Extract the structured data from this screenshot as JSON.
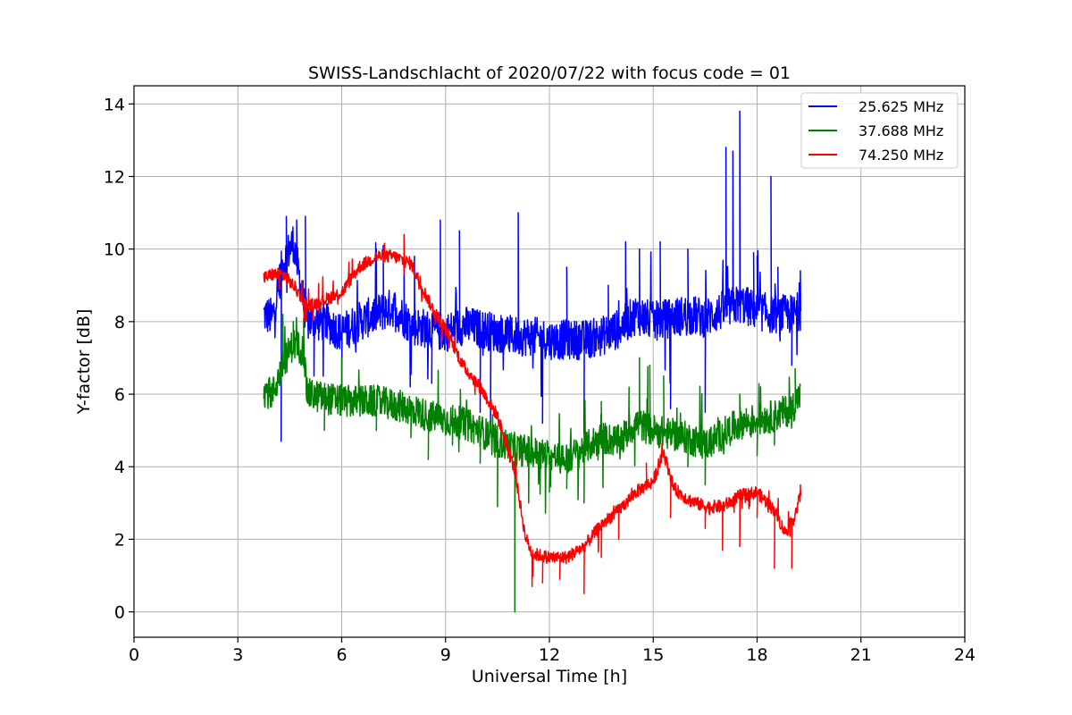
{
  "chart_data": {
    "type": "line",
    "title": "SWISS-Landschlacht of 2020/07/22 with focus code = 01",
    "xlabel": "Universal Time [h]",
    "ylabel": "Y-factor [dB]",
    "xlim": [
      0,
      24
    ],
    "ylim": [
      -0.7,
      14.5
    ],
    "xticks": [
      0,
      3,
      6,
      9,
      12,
      15,
      18,
      21,
      24
    ],
    "yticks": [
      0,
      2,
      4,
      6,
      8,
      10,
      12,
      14
    ],
    "grid": true,
    "legend_position": "top-right",
    "series": [
      {
        "name": "25.625 MHz",
        "color": "#0000ff",
        "points": [
          [
            3.75,
            8.2
          ],
          [
            4.0,
            8.1
          ],
          [
            4.3,
            9.6
          ],
          [
            4.6,
            10.2
          ],
          [
            5.0,
            8.0
          ],
          [
            5.5,
            8.0
          ],
          [
            6.0,
            7.7
          ],
          [
            6.5,
            8.0
          ],
          [
            7.0,
            8.2
          ],
          [
            7.5,
            8.4
          ],
          [
            8.0,
            7.9
          ],
          [
            8.5,
            7.8
          ],
          [
            9.0,
            7.7
          ],
          [
            9.5,
            7.9
          ],
          [
            10.0,
            7.8
          ],
          [
            10.5,
            7.7
          ],
          [
            11.0,
            7.6
          ],
          [
            11.5,
            7.6
          ],
          [
            12.0,
            7.5
          ],
          [
            12.5,
            7.5
          ],
          [
            13.0,
            7.5
          ],
          [
            13.5,
            7.6
          ],
          [
            14.0,
            7.8
          ],
          [
            14.5,
            8.2
          ],
          [
            15.0,
            8.0
          ],
          [
            15.5,
            8.1
          ],
          [
            16.0,
            8.2
          ],
          [
            16.5,
            8.1
          ],
          [
            17.0,
            8.3
          ],
          [
            17.5,
            8.5
          ],
          [
            18.0,
            8.3
          ],
          [
            18.5,
            8.2
          ],
          [
            19.0,
            8.2
          ],
          [
            19.25,
            8.3
          ]
        ],
        "spikes": [
          [
            4.25,
            4.7
          ],
          [
            4.4,
            10.9
          ],
          [
            4.7,
            10.8
          ],
          [
            4.95,
            10.9
          ],
          [
            5.2,
            6.5
          ],
          [
            6.0,
            6.1
          ],
          [
            7.0,
            10.0
          ],
          [
            7.2,
            10.1
          ],
          [
            7.8,
            10.3
          ],
          [
            8.1,
            9.8
          ],
          [
            8.6,
            6.3
          ],
          [
            8.85,
            10.8
          ],
          [
            9.4,
            10.5
          ],
          [
            10.0,
            5.5
          ],
          [
            10.3,
            5.0
          ],
          [
            11.1,
            11.0
          ],
          [
            11.8,
            5.2
          ],
          [
            12.5,
            9.5
          ],
          [
            13.0,
            4.9
          ],
          [
            13.7,
            9.0
          ],
          [
            14.2,
            10.2
          ],
          [
            14.6,
            10.0
          ],
          [
            15.2,
            10.2
          ],
          [
            15.5,
            5.6
          ],
          [
            16.0,
            10.0
          ],
          [
            16.5,
            5.5
          ],
          [
            17.1,
            12.8
          ],
          [
            17.3,
            12.7
          ],
          [
            17.5,
            13.8
          ],
          [
            17.9,
            9.9
          ],
          [
            18.0,
            9.8
          ],
          [
            18.4,
            12.0
          ],
          [
            18.6,
            9.5
          ],
          [
            19.0,
            6.8
          ],
          [
            19.25,
            9.4
          ]
        ]
      },
      {
        "name": "37.688 MHz",
        "color": "#008000",
        "points": [
          [
            3.75,
            6.1
          ],
          [
            4.0,
            6.0
          ],
          [
            4.3,
            6.8
          ],
          [
            4.6,
            7.4
          ],
          [
            4.9,
            7.2
          ],
          [
            5.0,
            6.0
          ],
          [
            5.5,
            5.9
          ],
          [
            6.0,
            5.8
          ],
          [
            6.5,
            5.8
          ],
          [
            7.0,
            5.8
          ],
          [
            7.5,
            5.7
          ],
          [
            8.0,
            5.6
          ],
          [
            8.5,
            5.4
          ],
          [
            9.0,
            5.3
          ],
          [
            9.5,
            5.2
          ],
          [
            10.0,
            5.0
          ],
          [
            10.5,
            4.7
          ],
          [
            11.0,
            4.5
          ],
          [
            11.5,
            4.4
          ],
          [
            12.0,
            4.3
          ],
          [
            12.5,
            4.2
          ],
          [
            13.0,
            4.5
          ],
          [
            13.5,
            4.8
          ],
          [
            14.0,
            4.7
          ],
          [
            14.5,
            5.2
          ],
          [
            15.0,
            5.0
          ],
          [
            15.5,
            4.9
          ],
          [
            16.0,
            4.8
          ],
          [
            16.5,
            4.6
          ],
          [
            17.0,
            4.9
          ],
          [
            17.5,
            5.2
          ],
          [
            18.0,
            5.3
          ],
          [
            18.5,
            5.4
          ],
          [
            19.0,
            5.6
          ],
          [
            19.25,
            6.0
          ]
        ],
        "spikes": [
          [
            4.3,
            8.2
          ],
          [
            4.6,
            8.0
          ],
          [
            4.9,
            8.1
          ],
          [
            5.5,
            5.0
          ],
          [
            6.0,
            7.0
          ],
          [
            6.5,
            6.2
          ],
          [
            7.0,
            5.0
          ],
          [
            8.0,
            4.8
          ],
          [
            8.5,
            4.2
          ],
          [
            9.2,
            4.6
          ],
          [
            10.0,
            4.1
          ],
          [
            10.5,
            2.9
          ],
          [
            11.0,
            0.0
          ],
          [
            11.4,
            3.0
          ],
          [
            12.0,
            3.3
          ],
          [
            12.5,
            3.4
          ],
          [
            13.0,
            3.0
          ],
          [
            13.5,
            5.8
          ],
          [
            14.3,
            5.8
          ],
          [
            14.6,
            7.0
          ],
          [
            14.9,
            6.8
          ],
          [
            15.3,
            6.5
          ],
          [
            16.0,
            4.0
          ],
          [
            16.5,
            3.5
          ],
          [
            17.5,
            6.0
          ],
          [
            18.0,
            4.3
          ],
          [
            18.1,
            6.2
          ],
          [
            18.5,
            4.6
          ],
          [
            19.1,
            6.7
          ]
        ]
      },
      {
        "name": "74.250 MHz",
        "color": "#ff0000",
        "points": [
          [
            3.75,
            9.2
          ],
          [
            4.0,
            9.3
          ],
          [
            4.3,
            9.3
          ],
          [
            4.6,
            9.0
          ],
          [
            4.9,
            8.6
          ],
          [
            5.0,
            8.4
          ],
          [
            5.5,
            8.6
          ],
          [
            6.0,
            8.8
          ],
          [
            6.5,
            9.5
          ],
          [
            7.0,
            9.8
          ],
          [
            7.5,
            9.8
          ],
          [
            8.0,
            9.6
          ],
          [
            8.3,
            9.0
          ],
          [
            8.6,
            8.4
          ],
          [
            9.0,
            7.8
          ],
          [
            9.5,
            6.8
          ],
          [
            10.0,
            6.2
          ],
          [
            10.5,
            5.4
          ],
          [
            11.0,
            3.9
          ],
          [
            11.3,
            2.1
          ],
          [
            11.5,
            1.6
          ],
          [
            12.0,
            1.5
          ],
          [
            12.5,
            1.5
          ],
          [
            13.0,
            1.8
          ],
          [
            13.5,
            2.4
          ],
          [
            14.0,
            2.8
          ],
          [
            14.5,
            3.3
          ],
          [
            15.0,
            3.6
          ],
          [
            15.3,
            4.4
          ],
          [
            15.6,
            3.4
          ],
          [
            16.0,
            3.1
          ],
          [
            16.5,
            2.9
          ],
          [
            17.0,
            2.9
          ],
          [
            17.5,
            3.2
          ],
          [
            18.0,
            3.3
          ],
          [
            18.5,
            2.8
          ],
          [
            18.8,
            2.2
          ],
          [
            19.0,
            2.4
          ],
          [
            19.25,
            3.2
          ]
        ],
        "spikes": [
          [
            7.8,
            10.4
          ],
          [
            11.5,
            0.7
          ],
          [
            11.8,
            0.8
          ],
          [
            12.3,
            0.9
          ],
          [
            13.0,
            0.5
          ],
          [
            13.5,
            1.5
          ],
          [
            14.0,
            2.0
          ],
          [
            14.8,
            4.1
          ],
          [
            15.5,
            2.6
          ],
          [
            16.5,
            2.3
          ],
          [
            17.0,
            1.7
          ],
          [
            17.5,
            1.8
          ],
          [
            18.0,
            2.6
          ],
          [
            18.5,
            1.2
          ],
          [
            19.0,
            1.2
          ],
          [
            19.25,
            3.5
          ]
        ]
      }
    ]
  }
}
